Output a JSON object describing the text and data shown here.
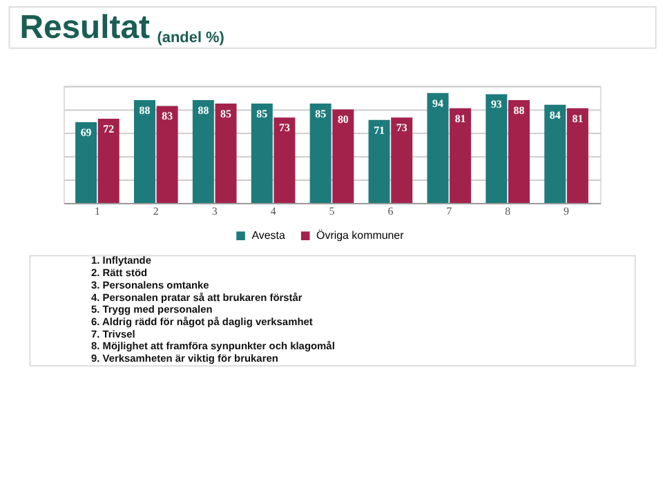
{
  "chart_data": {
    "type": "bar",
    "title": "Resultat",
    "subtitle": "(andel %)",
    "categories": [
      "1",
      "2",
      "3",
      "4",
      "5",
      "6",
      "7",
      "8",
      "9"
    ],
    "series": [
      {
        "name": "Avesta",
        "color": "#1e7b7c",
        "values": [
          69,
          88,
          88,
          85,
          85,
          71,
          94,
          93,
          84
        ]
      },
      {
        "name": "Övriga kommuner",
        "color": "#a3224c",
        "values": [
          72,
          83,
          85,
          73,
          80,
          73,
          81,
          88,
          81
        ]
      }
    ],
    "grid": "y",
    "legend": "bottom",
    "data_labels": true,
    "tick_labels": "x",
    "annotations": [
      "1. Inflytande",
      "2. Rätt stöd",
      "3. Personalens omtanke",
      "4. Personalen pratar så att brukaren förstår",
      "5. Trygg med personalen",
      "6. Aldrig rädd för något på daglig verksamhet",
      "7. Trivsel",
      "8. Möjlighet att framföra synpunkter och klagomål",
      "9. Verksamheten är viktig för brukaren"
    ]
  }
}
